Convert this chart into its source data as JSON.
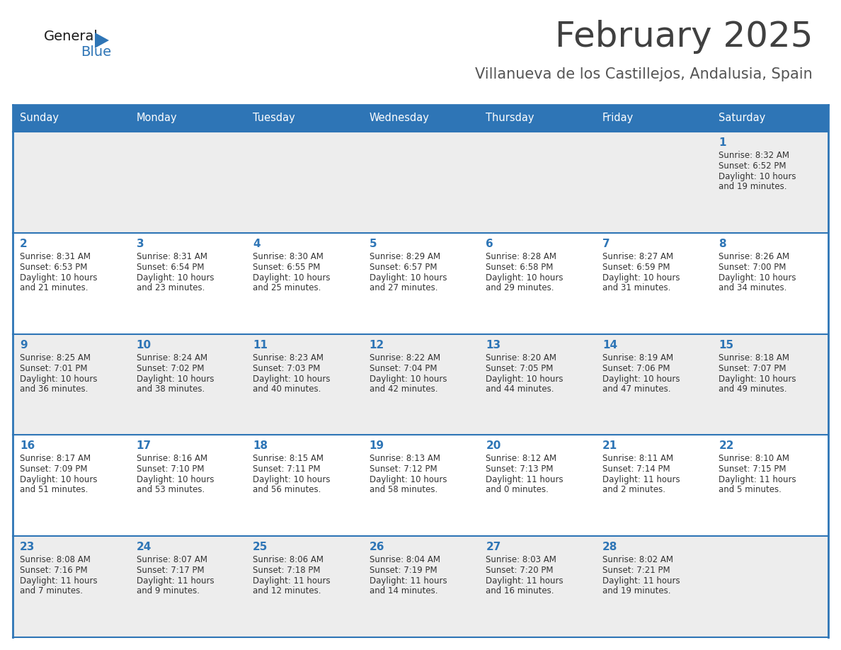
{
  "title": "February 2025",
  "subtitle": "Villanueva de los Castillejos, Andalusia, Spain",
  "days_of_week": [
    "Sunday",
    "Monday",
    "Tuesday",
    "Wednesday",
    "Thursday",
    "Friday",
    "Saturday"
  ],
  "header_bg": "#2E75B6",
  "header_text": "#FFFFFF",
  "row_bg_odd": "#EDEDED",
  "row_bg_even": "#FFFFFF",
  "border_color": "#2E75B6",
  "text_color": "#333333",
  "day_number_color": "#2E75B6",
  "title_color": "#404040",
  "subtitle_color": "#555555",
  "logo_general_color": "#1a1a1a",
  "logo_blue_color": "#2E75B6",
  "weeks": [
    [
      {
        "day": null,
        "sunrise": null,
        "sunset": null,
        "daylight_line1": null,
        "daylight_line2": null
      },
      {
        "day": null,
        "sunrise": null,
        "sunset": null,
        "daylight_line1": null,
        "daylight_line2": null
      },
      {
        "day": null,
        "sunrise": null,
        "sunset": null,
        "daylight_line1": null,
        "daylight_line2": null
      },
      {
        "day": null,
        "sunrise": null,
        "sunset": null,
        "daylight_line1": null,
        "daylight_line2": null
      },
      {
        "day": null,
        "sunrise": null,
        "sunset": null,
        "daylight_line1": null,
        "daylight_line2": null
      },
      {
        "day": null,
        "sunrise": null,
        "sunset": null,
        "daylight_line1": null,
        "daylight_line2": null
      },
      {
        "day": 1,
        "sunrise": "Sunrise: 8:32 AM",
        "sunset": "Sunset: 6:52 PM",
        "daylight_line1": "Daylight: 10 hours",
        "daylight_line2": "and 19 minutes."
      }
    ],
    [
      {
        "day": 2,
        "sunrise": "Sunrise: 8:31 AM",
        "sunset": "Sunset: 6:53 PM",
        "daylight_line1": "Daylight: 10 hours",
        "daylight_line2": "and 21 minutes."
      },
      {
        "day": 3,
        "sunrise": "Sunrise: 8:31 AM",
        "sunset": "Sunset: 6:54 PM",
        "daylight_line1": "Daylight: 10 hours",
        "daylight_line2": "and 23 minutes."
      },
      {
        "day": 4,
        "sunrise": "Sunrise: 8:30 AM",
        "sunset": "Sunset: 6:55 PM",
        "daylight_line1": "Daylight: 10 hours",
        "daylight_line2": "and 25 minutes."
      },
      {
        "day": 5,
        "sunrise": "Sunrise: 8:29 AM",
        "sunset": "Sunset: 6:57 PM",
        "daylight_line1": "Daylight: 10 hours",
        "daylight_line2": "and 27 minutes."
      },
      {
        "day": 6,
        "sunrise": "Sunrise: 8:28 AM",
        "sunset": "Sunset: 6:58 PM",
        "daylight_line1": "Daylight: 10 hours",
        "daylight_line2": "and 29 minutes."
      },
      {
        "day": 7,
        "sunrise": "Sunrise: 8:27 AM",
        "sunset": "Sunset: 6:59 PM",
        "daylight_line1": "Daylight: 10 hours",
        "daylight_line2": "and 31 minutes."
      },
      {
        "day": 8,
        "sunrise": "Sunrise: 8:26 AM",
        "sunset": "Sunset: 7:00 PM",
        "daylight_line1": "Daylight: 10 hours",
        "daylight_line2": "and 34 minutes."
      }
    ],
    [
      {
        "day": 9,
        "sunrise": "Sunrise: 8:25 AM",
        "sunset": "Sunset: 7:01 PM",
        "daylight_line1": "Daylight: 10 hours",
        "daylight_line2": "and 36 minutes."
      },
      {
        "day": 10,
        "sunrise": "Sunrise: 8:24 AM",
        "sunset": "Sunset: 7:02 PM",
        "daylight_line1": "Daylight: 10 hours",
        "daylight_line2": "and 38 minutes."
      },
      {
        "day": 11,
        "sunrise": "Sunrise: 8:23 AM",
        "sunset": "Sunset: 7:03 PM",
        "daylight_line1": "Daylight: 10 hours",
        "daylight_line2": "and 40 minutes."
      },
      {
        "day": 12,
        "sunrise": "Sunrise: 8:22 AM",
        "sunset": "Sunset: 7:04 PM",
        "daylight_line1": "Daylight: 10 hours",
        "daylight_line2": "and 42 minutes."
      },
      {
        "day": 13,
        "sunrise": "Sunrise: 8:20 AM",
        "sunset": "Sunset: 7:05 PM",
        "daylight_line1": "Daylight: 10 hours",
        "daylight_line2": "and 44 minutes."
      },
      {
        "day": 14,
        "sunrise": "Sunrise: 8:19 AM",
        "sunset": "Sunset: 7:06 PM",
        "daylight_line1": "Daylight: 10 hours",
        "daylight_line2": "and 47 minutes."
      },
      {
        "day": 15,
        "sunrise": "Sunrise: 8:18 AM",
        "sunset": "Sunset: 7:07 PM",
        "daylight_line1": "Daylight: 10 hours",
        "daylight_line2": "and 49 minutes."
      }
    ],
    [
      {
        "day": 16,
        "sunrise": "Sunrise: 8:17 AM",
        "sunset": "Sunset: 7:09 PM",
        "daylight_line1": "Daylight: 10 hours",
        "daylight_line2": "and 51 minutes."
      },
      {
        "day": 17,
        "sunrise": "Sunrise: 8:16 AM",
        "sunset": "Sunset: 7:10 PM",
        "daylight_line1": "Daylight: 10 hours",
        "daylight_line2": "and 53 minutes."
      },
      {
        "day": 18,
        "sunrise": "Sunrise: 8:15 AM",
        "sunset": "Sunset: 7:11 PM",
        "daylight_line1": "Daylight: 10 hours",
        "daylight_line2": "and 56 minutes."
      },
      {
        "day": 19,
        "sunrise": "Sunrise: 8:13 AM",
        "sunset": "Sunset: 7:12 PM",
        "daylight_line1": "Daylight: 10 hours",
        "daylight_line2": "and 58 minutes."
      },
      {
        "day": 20,
        "sunrise": "Sunrise: 8:12 AM",
        "sunset": "Sunset: 7:13 PM",
        "daylight_line1": "Daylight: 11 hours",
        "daylight_line2": "and 0 minutes."
      },
      {
        "day": 21,
        "sunrise": "Sunrise: 8:11 AM",
        "sunset": "Sunset: 7:14 PM",
        "daylight_line1": "Daylight: 11 hours",
        "daylight_line2": "and 2 minutes."
      },
      {
        "day": 22,
        "sunrise": "Sunrise: 8:10 AM",
        "sunset": "Sunset: 7:15 PM",
        "daylight_line1": "Daylight: 11 hours",
        "daylight_line2": "and 5 minutes."
      }
    ],
    [
      {
        "day": 23,
        "sunrise": "Sunrise: 8:08 AM",
        "sunset": "Sunset: 7:16 PM",
        "daylight_line1": "Daylight: 11 hours",
        "daylight_line2": "and 7 minutes."
      },
      {
        "day": 24,
        "sunrise": "Sunrise: 8:07 AM",
        "sunset": "Sunset: 7:17 PM",
        "daylight_line1": "Daylight: 11 hours",
        "daylight_line2": "and 9 minutes."
      },
      {
        "day": 25,
        "sunrise": "Sunrise: 8:06 AM",
        "sunset": "Sunset: 7:18 PM",
        "daylight_line1": "Daylight: 11 hours",
        "daylight_line2": "and 12 minutes."
      },
      {
        "day": 26,
        "sunrise": "Sunrise: 8:04 AM",
        "sunset": "Sunset: 7:19 PM",
        "daylight_line1": "Daylight: 11 hours",
        "daylight_line2": "and 14 minutes."
      },
      {
        "day": 27,
        "sunrise": "Sunrise: 8:03 AM",
        "sunset": "Sunset: 7:20 PM",
        "daylight_line1": "Daylight: 11 hours",
        "daylight_line2": "and 16 minutes."
      },
      {
        "day": 28,
        "sunrise": "Sunrise: 8:02 AM",
        "sunset": "Sunset: 7:21 PM",
        "daylight_line1": "Daylight: 11 hours",
        "daylight_line2": "and 19 minutes."
      },
      {
        "day": null,
        "sunrise": null,
        "sunset": null,
        "daylight_line1": null,
        "daylight_line2": null
      }
    ]
  ]
}
